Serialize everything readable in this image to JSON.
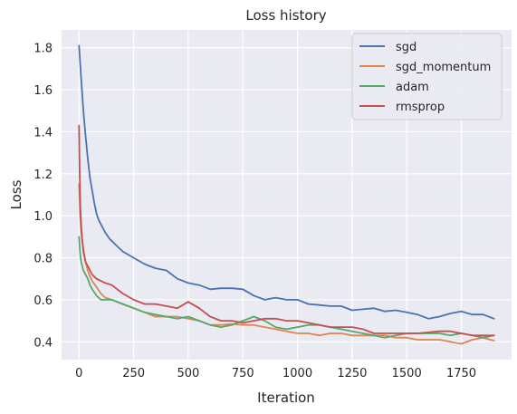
{
  "chart_data": {
    "type": "line",
    "title": "Loss history",
    "xlabel": "Iteration",
    "ylabel": "Loss",
    "xlim": [
      -80,
      1980
    ],
    "ylim": [
      0.315,
      1.885
    ],
    "xticks": [
      0,
      250,
      500,
      750,
      1000,
      1250,
      1500,
      1750
    ],
    "yticks": [
      0.4,
      0.6,
      0.8,
      1.0,
      1.2,
      1.4,
      1.6,
      1.8
    ],
    "ytick_labels": [
      "0.4",
      "0.6",
      "0.8",
      "1.0",
      "1.2",
      "1.4",
      "1.6",
      "1.8"
    ],
    "grid": true,
    "legend_position": "top-right",
    "background": "#eaeaf2",
    "series": [
      {
        "name": "sgd",
        "color": "#4c72b0",
        "x": [
          0,
          10,
          20,
          30,
          40,
          50,
          60,
          70,
          80,
          90,
          100,
          120,
          140,
          160,
          180,
          200,
          250,
          300,
          350,
          400,
          450,
          500,
          550,
          600,
          650,
          700,
          750,
          800,
          850,
          900,
          950,
          1000,
          1050,
          1100,
          1150,
          1200,
          1250,
          1300,
          1350,
          1400,
          1450,
          1500,
          1550,
          1600,
          1650,
          1700,
          1750,
          1800,
          1850,
          1900
        ],
        "y": [
          1.81,
          1.65,
          1.5,
          1.38,
          1.27,
          1.18,
          1.12,
          1.06,
          1.01,
          0.98,
          0.96,
          0.92,
          0.89,
          0.87,
          0.85,
          0.83,
          0.8,
          0.77,
          0.75,
          0.74,
          0.7,
          0.68,
          0.67,
          0.65,
          0.655,
          0.655,
          0.65,
          0.62,
          0.6,
          0.61,
          0.6,
          0.6,
          0.58,
          0.575,
          0.57,
          0.57,
          0.55,
          0.555,
          0.56,
          0.545,
          0.55,
          0.54,
          0.53,
          0.51,
          0.52,
          0.535,
          0.545,
          0.53,
          0.53,
          0.51
        ]
      },
      {
        "name": "sgd_momentum",
        "color": "#dd8452",
        "x": [
          0,
          5,
          10,
          20,
          30,
          40,
          50,
          60,
          80,
          100,
          120,
          150,
          200,
          250,
          300,
          350,
          400,
          450,
          500,
          550,
          600,
          650,
          700,
          750,
          800,
          850,
          900,
          950,
          1000,
          1050,
          1100,
          1150,
          1200,
          1250,
          1300,
          1350,
          1400,
          1450,
          1500,
          1550,
          1600,
          1650,
          1700,
          1750,
          1800,
          1850,
          1900
        ],
        "y": [
          1.15,
          1.0,
          0.92,
          0.84,
          0.78,
          0.74,
          0.71,
          0.69,
          0.66,
          0.63,
          0.61,
          0.6,
          0.58,
          0.56,
          0.54,
          0.52,
          0.52,
          0.52,
          0.51,
          0.5,
          0.48,
          0.48,
          0.485,
          0.48,
          0.48,
          0.47,
          0.46,
          0.45,
          0.44,
          0.44,
          0.43,
          0.44,
          0.44,
          0.43,
          0.43,
          0.43,
          0.43,
          0.42,
          0.42,
          0.41,
          0.41,
          0.41,
          0.4,
          0.39,
          0.41,
          0.42,
          0.405
        ]
      },
      {
        "name": "adam",
        "color": "#55a868",
        "x": [
          0,
          5,
          10,
          20,
          30,
          40,
          50,
          60,
          80,
          100,
          120,
          150,
          200,
          250,
          300,
          350,
          400,
          450,
          500,
          550,
          600,
          650,
          700,
          750,
          800,
          850,
          900,
          950,
          1000,
          1050,
          1100,
          1150,
          1200,
          1250,
          1300,
          1350,
          1400,
          1450,
          1500,
          1550,
          1600,
          1650,
          1700,
          1750,
          1800,
          1850,
          1900
        ],
        "y": [
          0.9,
          0.82,
          0.78,
          0.74,
          0.72,
          0.7,
          0.67,
          0.65,
          0.62,
          0.6,
          0.6,
          0.6,
          0.58,
          0.56,
          0.54,
          0.53,
          0.52,
          0.51,
          0.52,
          0.5,
          0.48,
          0.47,
          0.48,
          0.5,
          0.52,
          0.5,
          0.47,
          0.46,
          0.47,
          0.48,
          0.48,
          0.47,
          0.46,
          0.45,
          0.44,
          0.43,
          0.42,
          0.43,
          0.44,
          0.44,
          0.44,
          0.44,
          0.43,
          0.44,
          0.43,
          0.42,
          0.43
        ]
      },
      {
        "name": "rmsprop",
        "color": "#c44e52",
        "x": [
          0,
          3,
          6,
          10,
          15,
          20,
          30,
          40,
          50,
          60,
          80,
          100,
          120,
          150,
          200,
          250,
          300,
          350,
          400,
          450,
          500,
          550,
          600,
          650,
          700,
          750,
          800,
          850,
          900,
          950,
          1000,
          1050,
          1100,
          1150,
          1200,
          1250,
          1300,
          1350,
          1400,
          1450,
          1500,
          1550,
          1600,
          1650,
          1700,
          1750,
          1800,
          1850,
          1900
        ],
        "y": [
          1.43,
          1.2,
          1.05,
          0.95,
          0.88,
          0.83,
          0.78,
          0.76,
          0.74,
          0.72,
          0.7,
          0.69,
          0.68,
          0.67,
          0.63,
          0.6,
          0.58,
          0.58,
          0.57,
          0.56,
          0.59,
          0.56,
          0.52,
          0.5,
          0.5,
          0.49,
          0.5,
          0.51,
          0.51,
          0.5,
          0.5,
          0.49,
          0.48,
          0.47,
          0.47,
          0.47,
          0.46,
          0.44,
          0.44,
          0.44,
          0.44,
          0.44,
          0.445,
          0.45,
          0.45,
          0.44,
          0.43,
          0.43,
          0.43
        ]
      }
    ]
  }
}
